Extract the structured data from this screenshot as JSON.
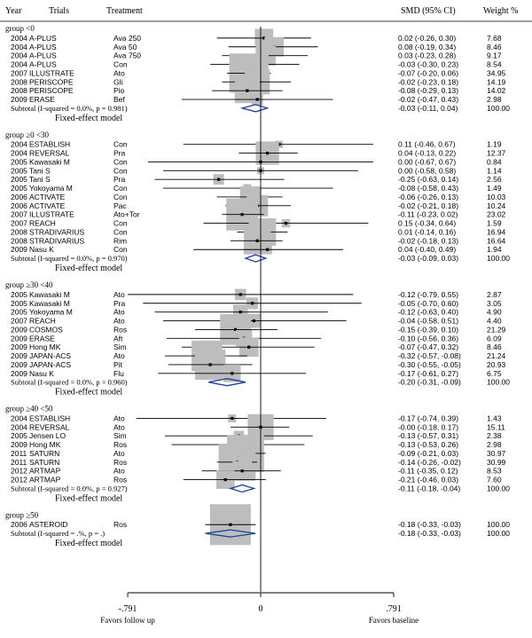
{
  "chart_data": {
    "type": "forest",
    "title": "",
    "headers": {
      "year": "Year",
      "trial": "Trials",
      "treatment": "Treatment",
      "smd": "SMD (95% CI)",
      "weight": "Weight %"
    },
    "x_axis": {
      "min": -0.791,
      "max": 0.791,
      "ticks": [
        {
          "value": -0.791,
          "label": "-.791"
        },
        {
          "value": 0,
          "label": "0"
        },
        {
          "value": 0.791,
          "label": ".791"
        }
      ],
      "left_label": "Favors follow up",
      "right_label": "Favors baseline"
    },
    "groups": [
      {
        "label": "group <0",
        "studies": [
          {
            "year": "2004",
            "trial": "A-PLUS",
            "treatment": "Ava 250",
            "smd": 0.02,
            "lo": -0.26,
            "hi": 0.3,
            "ci_text": "0.02 (-0.26, 0.30)",
            "weight": "7.68"
          },
          {
            "year": "2004",
            "trial": "A-PLUS",
            "treatment": "Ava 50",
            "smd": 0.08,
            "lo": -0.19,
            "hi": 0.34,
            "ci_text": "0.08 (-0.19, 0.34)",
            "weight": "8.46"
          },
          {
            "year": "2004",
            "trial": "A-PLUS",
            "treatment": "Ava 750",
            "smd": 0.03,
            "lo": -0.23,
            "hi": 0.28,
            "ci_text": "0.03 (-0.23, 0.28)",
            "weight": "9.17"
          },
          {
            "year": "2004",
            "trial": "A-PLUS",
            "treatment": "Con",
            "smd": -0.03,
            "lo": -0.3,
            "hi": 0.23,
            "ci_text": "-0.03 (-0.30, 0.23)",
            "weight": "8.54"
          },
          {
            "year": "2007",
            "trial": "ILLUSTRATE",
            "treatment": "Ato",
            "smd": -0.07,
            "lo": -0.2,
            "hi": 0.06,
            "ci_text": "-0.07 (-0.20, 0.06)",
            "weight": "34.95"
          },
          {
            "year": "2008",
            "trial": "PERISCOPE",
            "treatment": "Gli",
            "smd": -0.02,
            "lo": -0.23,
            "hi": 0.18,
            "ci_text": "-0.02 (-0.23, 0.18)",
            "weight": "14.19"
          },
          {
            "year": "2008",
            "trial": "PERISCOPE",
            "treatment": "Pio",
            "smd": -0.08,
            "lo": -0.29,
            "hi": 0.13,
            "ci_text": "-0.08 (-0.29, 0.13)",
            "weight": "14.02"
          },
          {
            "year": "2009",
            "trial": "ERASE",
            "treatment": "Bef",
            "smd": -0.02,
            "lo": -0.47,
            "hi": 0.43,
            "ci_text": "-0.02 (-0.47, 0.43)",
            "weight": "2.98"
          }
        ],
        "subtotal": {
          "label": "Subtotal  (I-squared = 0.0%, p = 0.981)",
          "smd": -0.03,
          "lo": -0.11,
          "hi": 0.04,
          "ci_text": "-0.03 (-0.11, 0.04)",
          "weight": "100.00"
        },
        "model": "Fixed-effect model"
      },
      {
        "label": "group ≥0 <30",
        "studies": [
          {
            "year": "2004",
            "trial": "ESTABLISH",
            "treatment": "Con",
            "smd": 0.11,
            "lo": -0.46,
            "hi": 0.67,
            "ci_text": "0.11 (-0.46, 0.67)",
            "weight": "1.19"
          },
          {
            "year": "2004",
            "trial": "REVERSAL",
            "treatment": "Pra",
            "smd": 0.04,
            "lo": -0.13,
            "hi": 0.22,
            "ci_text": "0.04 (-0.13, 0.22)",
            "weight": "12.37"
          },
          {
            "year": "2005",
            "trial": "Kawasaki M",
            "treatment": "Con",
            "smd": 0.0,
            "lo": -0.67,
            "hi": 0.67,
            "ci_text": "0.00 (-0.67, 0.67)",
            "weight": "0.84"
          },
          {
            "year": "2005",
            "trial": "Tani S",
            "treatment": "Con",
            "smd": 0.0,
            "lo": -0.58,
            "hi": 0.58,
            "ci_text": "0.00 (-0.58, 0.58)",
            "weight": "1.14"
          },
          {
            "year": "2005",
            "trial": "Tani S",
            "treatment": "Pra",
            "smd": -0.25,
            "lo": -0.63,
            "hi": 0.14,
            "ci_text": "-0.25 (-0.63, 0.14)",
            "weight": "2.56"
          },
          {
            "year": "2005",
            "trial": "Yokoyama M",
            "treatment": "Con",
            "smd": -0.08,
            "lo": -0.58,
            "hi": 0.43,
            "ci_text": "-0.08 (-0.58, 0.43)",
            "weight": "1.49"
          },
          {
            "year": "2006",
            "trial": "ACTIVATE",
            "treatment": "Con",
            "smd": -0.06,
            "lo": -0.26,
            "hi": 0.13,
            "ci_text": "-0.06 (-0.26, 0.13)",
            "weight": "10.03"
          },
          {
            "year": "2006",
            "trial": "ACTIVATE",
            "treatment": "Pac",
            "smd": -0.02,
            "lo": -0.21,
            "hi": 0.18,
            "ci_text": "-0.02 (-0.21, 0.18)",
            "weight": "10.24"
          },
          {
            "year": "2007",
            "trial": "ILLUSTRATE",
            "treatment": "Ato+Tor",
            "smd": -0.11,
            "lo": -0.23,
            "hi": 0.02,
            "ci_text": "-0.11 (-0.23, 0.02)",
            "weight": "23.02"
          },
          {
            "year": "2007",
            "trial": "REACH",
            "treatment": "Con",
            "smd": 0.15,
            "lo": -0.34,
            "hi": 0.64,
            "ci_text": "0.15 (-0.34, 0.64)",
            "weight": "1.59"
          },
          {
            "year": "2008",
            "trial": "STRADIVARIUS",
            "treatment": "Con",
            "smd": 0.01,
            "lo": -0.14,
            "hi": 0.16,
            "ci_text": "0.01 (-0.14, 0.16)",
            "weight": "16.94"
          },
          {
            "year": "2008",
            "trial": "STRADIVARIUS",
            "treatment": "Rim",
            "smd": -0.02,
            "lo": -0.18,
            "hi": 0.13,
            "ci_text": "-0.02 (-0.18, 0.13)",
            "weight": "16.64"
          },
          {
            "year": "2009",
            "trial": "Nasu K",
            "treatment": "Con",
            "smd": 0.04,
            "lo": -0.4,
            "hi": 0.49,
            "ci_text": "0.04 (-0.40, 0.49)",
            "weight": "1.94"
          }
        ],
        "subtotal": {
          "label": "Subtotal  (I-squared = 0.0%, p = 0.970)",
          "smd": -0.03,
          "lo": -0.09,
          "hi": 0.03,
          "ci_text": "-0.03 (-0.09, 0.03)",
          "weight": "100.00"
        },
        "model": "Fixed-effect model"
      },
      {
        "label": "group ≥30 <40",
        "studies": [
          {
            "year": "2005",
            "trial": "Kawasaki M",
            "treatment": "Ato",
            "smd": -0.12,
            "lo": -0.79,
            "hi": 0.55,
            "ci_text": "-0.12 (-0.79, 0.55)",
            "weight": "2.87"
          },
          {
            "year": "2005",
            "trial": "Kawasaki M",
            "treatment": "Pra",
            "smd": -0.05,
            "lo": -0.7,
            "hi": 0.6,
            "ci_text": "-0.05 (-0.70, 0.60)",
            "weight": "3.05"
          },
          {
            "year": "2005",
            "trial": "Yokoyama M",
            "treatment": "Ato",
            "smd": -0.12,
            "lo": -0.63,
            "hi": 0.4,
            "ci_text": "-0.12 (-0.63, 0.40)",
            "weight": "4.90"
          },
          {
            "year": "2007",
            "trial": "REACH",
            "treatment": "Ato",
            "smd": -0.04,
            "lo": -0.58,
            "hi": 0.51,
            "ci_text": "-0.04 (-0.58, 0.51)",
            "weight": "4.40"
          },
          {
            "year": "2009",
            "trial": "COSMOS",
            "treatment": "Ros",
            "smd": -0.15,
            "lo": -0.39,
            "hi": 0.1,
            "ci_text": "-0.15 (-0.39, 0.10)",
            "weight": "21.29"
          },
          {
            "year": "2009",
            "trial": "ERASE",
            "treatment": "Aft",
            "smd": -0.1,
            "lo": -0.56,
            "hi": 0.36,
            "ci_text": "-0.10 (-0.56, 0.36)",
            "weight": "6.09"
          },
          {
            "year": "2009",
            "trial": "Hong MK",
            "treatment": "Sim",
            "smd": -0.07,
            "lo": -0.47,
            "hi": 0.32,
            "ci_text": "-0.07 (-0.47, 0.32)",
            "weight": "8.46"
          },
          {
            "year": "2009",
            "trial": "JAPAN-ACS",
            "treatment": "Ato",
            "smd": -0.32,
            "lo": -0.57,
            "hi": -0.08,
            "ci_text": "-0.32 (-0.57, -0.08)",
            "weight": "21.24"
          },
          {
            "year": "2009",
            "trial": "JAPAN-ACS",
            "treatment": "Pit",
            "smd": -0.3,
            "lo": -0.55,
            "hi": -0.05,
            "ci_text": "-0.30 (-0.55, -0.05)",
            "weight": "20.93"
          },
          {
            "year": "2009",
            "trial": "Nasu K",
            "treatment": "Flu",
            "smd": -0.17,
            "lo": -0.61,
            "hi": 0.27,
            "ci_text": "-0.17 (-0.61, 0.27)",
            "weight": "6.75"
          }
        ],
        "subtotal": {
          "label": "Subtotal  (I-squared = 0.0%, p = 0.960)",
          "smd": -0.2,
          "lo": -0.31,
          "hi": -0.09,
          "ci_text": "-0.20 (-0.31, -0.09)",
          "weight": "100.00"
        },
        "model": "Fixed-effect model"
      },
      {
        "label": "group ≥40 <50",
        "studies": [
          {
            "year": "2004",
            "trial": "ESTABLISH",
            "treatment": "Ato",
            "smd": -0.17,
            "lo": -0.74,
            "hi": 0.39,
            "ci_text": "-0.17 (-0.74, 0.39)",
            "weight": "1.43"
          },
          {
            "year": "2004",
            "trial": "REVERSAL",
            "treatment": "Ato",
            "smd": -0.0,
            "lo": -0.18,
            "hi": 0.17,
            "ci_text": "-0.00 (-0.18, 0.17)",
            "weight": "15.11"
          },
          {
            "year": "2005",
            "trial": "Jensen LO",
            "treatment": "Sim",
            "smd": -0.13,
            "lo": -0.57,
            "hi": 0.31,
            "ci_text": "-0.13 (-0.57, 0.31)",
            "weight": "2.38"
          },
          {
            "year": "2009",
            "trial": "Hong MK",
            "treatment": "Ros",
            "smd": -0.13,
            "lo": -0.53,
            "hi": 0.26,
            "ci_text": "-0.13 (-0.53, 0.26)",
            "weight": "2.98"
          },
          {
            "year": "2011",
            "trial": "SATURN",
            "treatment": "Ato",
            "smd": -0.09,
            "lo": -0.21,
            "hi": 0.03,
            "ci_text": "-0.09 (-0.21, 0.03)",
            "weight": "30.97"
          },
          {
            "year": "2011",
            "trial": "SATURN",
            "treatment": "Ros",
            "smd": -0.14,
            "lo": -0.26,
            "hi": -0.02,
            "ci_text": "-0.14 (-0.26, -0.02)",
            "weight": "30.99"
          },
          {
            "year": "2012",
            "trial": "ARTMAP",
            "treatment": "Ato",
            "smd": -0.11,
            "lo": -0.35,
            "hi": 0.12,
            "ci_text": "-0.11 (-0.35, 0.12)",
            "weight": "8.53"
          },
          {
            "year": "2012",
            "trial": "ARTMAP",
            "treatment": "Ros",
            "smd": -0.21,
            "lo": -0.46,
            "hi": 0.03,
            "ci_text": "-0.21 (-0.46, 0.03)",
            "weight": "7.60"
          }
        ],
        "subtotal": {
          "label": "Subtotal  (I-squared = 0.0%, p = 0.927)",
          "smd": -0.11,
          "lo": -0.18,
          "hi": -0.04,
          "ci_text": "-0.11 (-0.18, -0.04)",
          "weight": "100.00"
        },
        "model": "Fixed-effect model"
      },
      {
        "label": "group ≥50",
        "studies": [
          {
            "year": "2006",
            "trial": "ASTEROID",
            "treatment": "Ros",
            "smd": -0.18,
            "lo": -0.33,
            "hi": -0.03,
            "ci_text": "-0.18 (-0.33, -0.03)",
            "weight": "100.00"
          }
        ],
        "subtotal": {
          "label": "Subtotal  (I-squared = .%, p = .)",
          "smd": -0.18,
          "lo": -0.33,
          "hi": -0.03,
          "ci_text": "-0.18 (-0.33, -0.03)",
          "weight": "100.00"
        },
        "model": "Fixed-effect model"
      }
    ],
    "colors": {
      "box": "#bdbdbd",
      "diamond": "#1f3f9a",
      "line": "#000000"
    }
  }
}
